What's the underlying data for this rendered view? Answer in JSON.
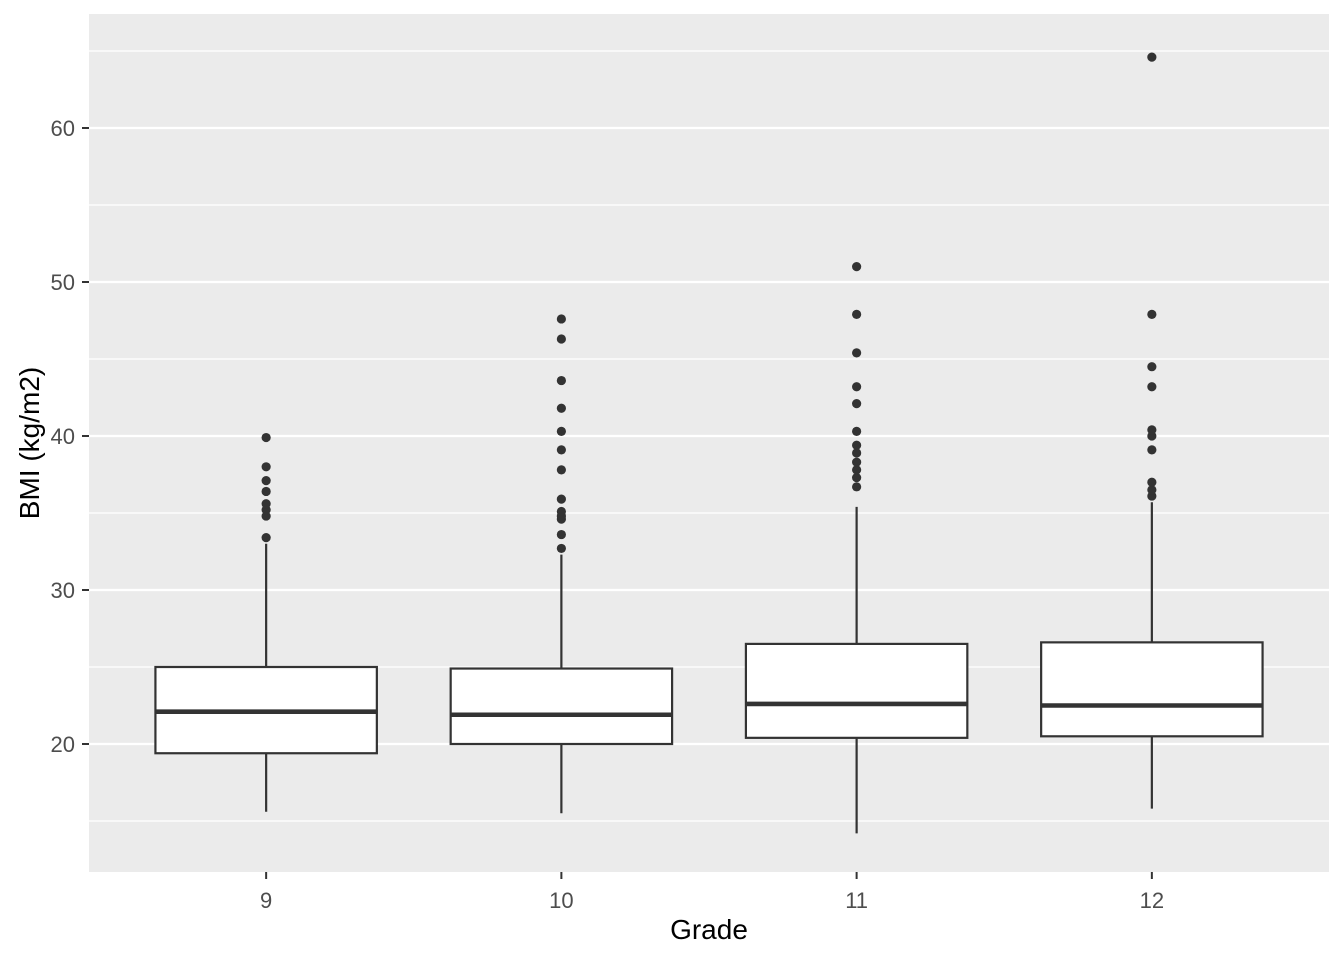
{
  "figure": {
    "xlabel": "Grade",
    "ylabel": "BMI (kg/m2)"
  },
  "chart_data": {
    "type": "boxplot",
    "title": "",
    "xlabel": "Grade",
    "ylabel": "BMI (kg/m2)",
    "categories": [
      "9",
      "10",
      "11",
      "12"
    ],
    "y_major_ticks": [
      20,
      30,
      40,
      50,
      60
    ],
    "y_minor_gridlines": [
      15,
      25,
      35,
      45,
      55,
      65
    ],
    "ylim": [
      11.7,
      67.4
    ],
    "grid": "major-and-minor-horizontal",
    "legend": "none",
    "style": "ggplot2-grey-theme",
    "series": [
      {
        "category": "9",
        "whisker_low": 15.6,
        "q1": 19.4,
        "median": 22.1,
        "q3": 25.0,
        "whisker_high": 33.0,
        "outliers": [
          33.4,
          34.8,
          35.2,
          35.6,
          36.4,
          37.1,
          38.0,
          39.9
        ]
      },
      {
        "category": "10",
        "whisker_low": 15.5,
        "q1": 20.0,
        "median": 21.9,
        "q3": 24.9,
        "whisker_high": 32.3,
        "outliers": [
          32.7,
          33.6,
          34.6,
          34.8,
          35.1,
          35.9,
          37.8,
          39.1,
          40.3,
          41.8,
          43.6,
          46.3,
          47.6
        ]
      },
      {
        "category": "11",
        "whisker_low": 14.2,
        "q1": 20.4,
        "median": 22.6,
        "q3": 26.5,
        "whisker_high": 35.4,
        "outliers": [
          36.7,
          37.3,
          37.8,
          38.3,
          38.9,
          39.4,
          40.3,
          42.1,
          43.2,
          45.4,
          47.9,
          51.0
        ]
      },
      {
        "category": "12",
        "whisker_low": 15.8,
        "q1": 20.5,
        "median": 22.5,
        "q3": 26.6,
        "whisker_high": 35.7,
        "outliers": [
          36.1,
          36.5,
          37.0,
          39.1,
          40.0,
          40.4,
          43.2,
          44.5,
          47.9,
          64.6
        ]
      }
    ],
    "colors": {
      "page_bg": "#FFFFFF",
      "panel_bg": "#EBEBEB",
      "grid": "#FFFFFF",
      "box_fill": "#FFFFFF",
      "stroke": "#333333",
      "tick_text": "#4D4D4D",
      "title_text": "#000000"
    }
  }
}
